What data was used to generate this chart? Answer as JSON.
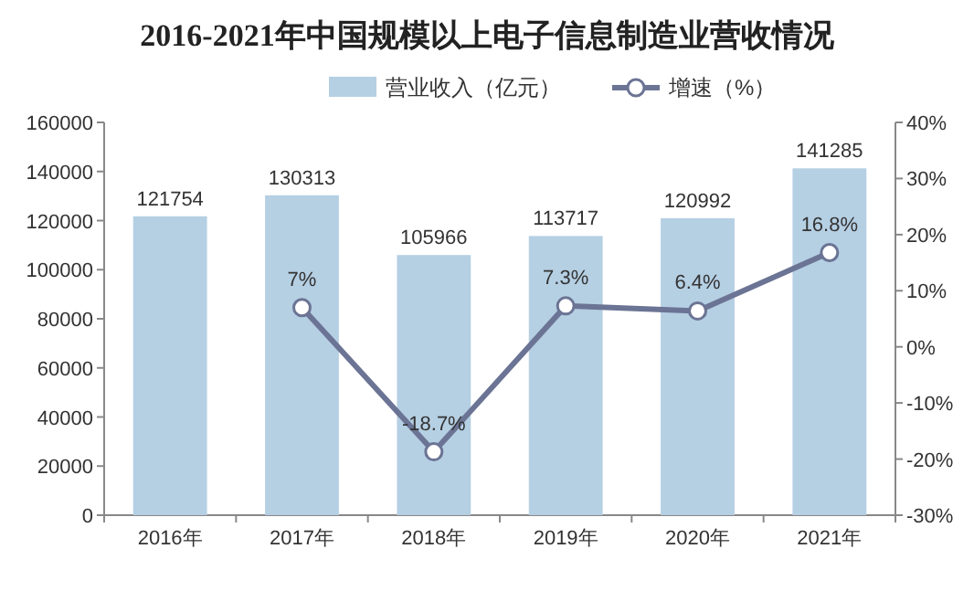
{
  "chart_data": {
    "type": "bar",
    "title": "2016-2021年中国规模以上电子信息制造业营收情况",
    "categories": [
      "2016年",
      "2017年",
      "2018年",
      "2019年",
      "2020年",
      "2021年"
    ],
    "series": [
      {
        "name": "营业收入（亿元）",
        "color": "#b5cfe3",
        "values": [
          121754,
          130313,
          105966,
          113717,
          120992,
          141285
        ],
        "value_labels": [
          "121754",
          "130313",
          "105966",
          "113717",
          "120992",
          "141285"
        ]
      },
      {
        "name": "增速（%）",
        "type": "line",
        "axis": "y2",
        "color": "#6b7494",
        "marker": "circle",
        "values": [
          null,
          7,
          -18.7,
          7.3,
          6.4,
          16.8
        ],
        "value_labels": [
          null,
          "7%",
          "-18.7%",
          "7.3%",
          "6.4%",
          "16.8%"
        ]
      }
    ],
    "ylim": [
      0,
      160000
    ],
    "yticks": [
      0,
      20000,
      40000,
      60000,
      80000,
      100000,
      120000,
      140000,
      160000
    ],
    "y2lim": [
      -30,
      40
    ],
    "y2ticks": [
      {
        "value": -30,
        "label": "-30%"
      },
      {
        "value": -20,
        "label": "-20%"
      },
      {
        "value": -10,
        "label": "-10%"
      },
      {
        "value": 0,
        "label": "0%"
      },
      {
        "value": 10,
        "label": "10%"
      },
      {
        "value": 20,
        "label": "20%"
      },
      {
        "value": 30,
        "label": "30%"
      },
      {
        "value": 40,
        "label": "40%"
      }
    ],
    "grid": false,
    "legend": "top"
  }
}
